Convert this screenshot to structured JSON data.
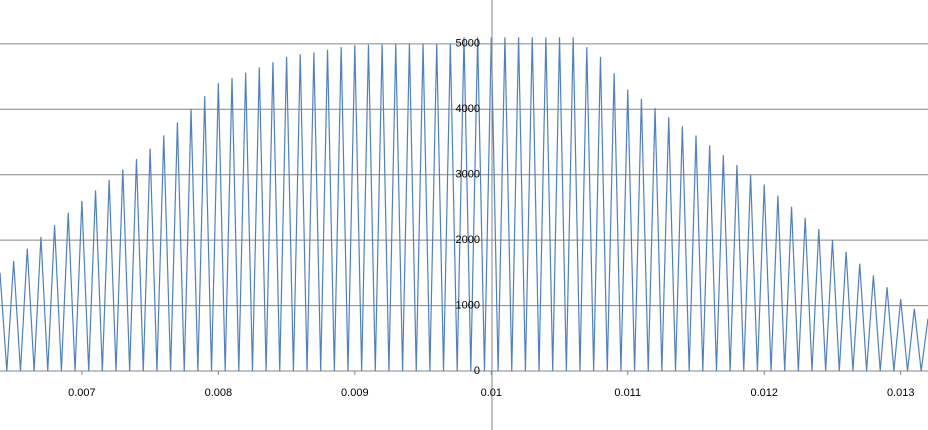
{
  "chart_data": {
    "type": "line",
    "color": "#4f81bd",
    "grid": true,
    "xlim": [
      0.0064,
      0.0132
    ],
    "ylim": [
      0,
      5670
    ],
    "xticks": [
      0.007,
      0.008,
      0.009,
      0.01,
      0.011,
      0.012,
      0.013
    ],
    "yticks": [
      0,
      1000,
      2000,
      3000,
      4000,
      5000
    ],
    "x": [
      0.0064,
      0.00645,
      0.0065,
      0.00655,
      0.0066,
      0.00665,
      0.0067,
      0.00675,
      0.0068,
      0.00685,
      0.0069,
      0.00695,
      0.007,
      0.00705,
      0.0071,
      0.00715,
      0.0072,
      0.00725,
      0.0073,
      0.00735,
      0.0074,
      0.00745,
      0.0075,
      0.00755,
      0.0076,
      0.00765,
      0.0077,
      0.00775,
      0.0078,
      0.00785,
      0.0079,
      0.00795,
      0.008,
      0.00805,
      0.0081,
      0.00815,
      0.0082,
      0.00825,
      0.0083,
      0.00835,
      0.0084,
      0.00845,
      0.0085,
      0.00855,
      0.0086,
      0.00865,
      0.0087,
      0.00875,
      0.0088,
      0.00885,
      0.0089,
      0.00895,
      0.009,
      0.00905,
      0.0091,
      0.00915,
      0.0092,
      0.00925,
      0.0093,
      0.00935,
      0.0094,
      0.00945,
      0.0095,
      0.00955,
      0.0096,
      0.00965,
      0.0097,
      0.00975,
      0.0098,
      0.00985,
      0.0099,
      0.00995,
      0.01,
      0.01005,
      0.0101,
      0.01015,
      0.0102,
      0.01025,
      0.0103,
      0.01035,
      0.0104,
      0.01045,
      0.0105,
      0.01055,
      0.0106,
      0.01065,
      0.0107,
      0.01075,
      0.0108,
      0.01085,
      0.0109,
      0.01095,
      0.011,
      0.01105,
      0.0111,
      0.01115,
      0.0112,
      0.01125,
      0.0113,
      0.01135,
      0.0114,
      0.01145,
      0.0115,
      0.01155,
      0.0116,
      0.01165,
      0.0117,
      0.01175,
      0.0118,
      0.01185,
      0.0119,
      0.01195,
      0.012,
      0.01205,
      0.0121,
      0.01215,
      0.0122,
      0.01225,
      0.0123,
      0.01235,
      0.0124,
      0.01245,
      0.0125,
      0.01255,
      0.0126,
      0.01265,
      0.0127,
      0.01275,
      0.0128,
      0.01285,
      0.0129,
      0.01295,
      0.013,
      0.01305,
      0.0131,
      0.01315,
      0.0132
    ],
    "values": [
      1500,
      0,
      1680,
      0,
      1870,
      0,
      2050,
      0,
      2230,
      0,
      2420,
      0,
      2600,
      0,
      2760,
      0,
      2920,
      0,
      3080,
      0,
      3240,
      0,
      3400,
      0,
      3600,
      0,
      3800,
      0,
      4000,
      0,
      4200,
      0,
      4400,
      0,
      4480,
      0,
      4560,
      0,
      4640,
      0,
      4720,
      0,
      4800,
      0,
      4840,
      0,
      4870,
      0,
      4910,
      0,
      4950,
      0,
      4980,
      0,
      4985,
      0,
      4990,
      0,
      4995,
      0,
      5000,
      0,
      5000,
      0,
      5000,
      0,
      5000,
      0,
      5100,
      0,
      5100,
      0,
      5100,
      0,
      5100,
      0,
      5100,
      0,
      5100,
      0,
      5100,
      0,
      5100,
      0,
      5100,
      0,
      4950,
      0,
      4800,
      0,
      4550,
      0,
      4300,
      0,
      4160,
      0,
      4020,
      0,
      3880,
      0,
      3740,
      0,
      3600,
      0,
      3450,
      0,
      3300,
      0,
      3150,
      0,
      3000,
      0,
      2850,
      0,
      2680,
      0,
      2510,
      0,
      2340,
      0,
      2170,
      0,
      2000,
      0,
      1820,
      0,
      1640,
      0,
      1460,
      0,
      1280,
      0,
      1100,
      0,
      950,
      0,
      800
    ]
  }
}
